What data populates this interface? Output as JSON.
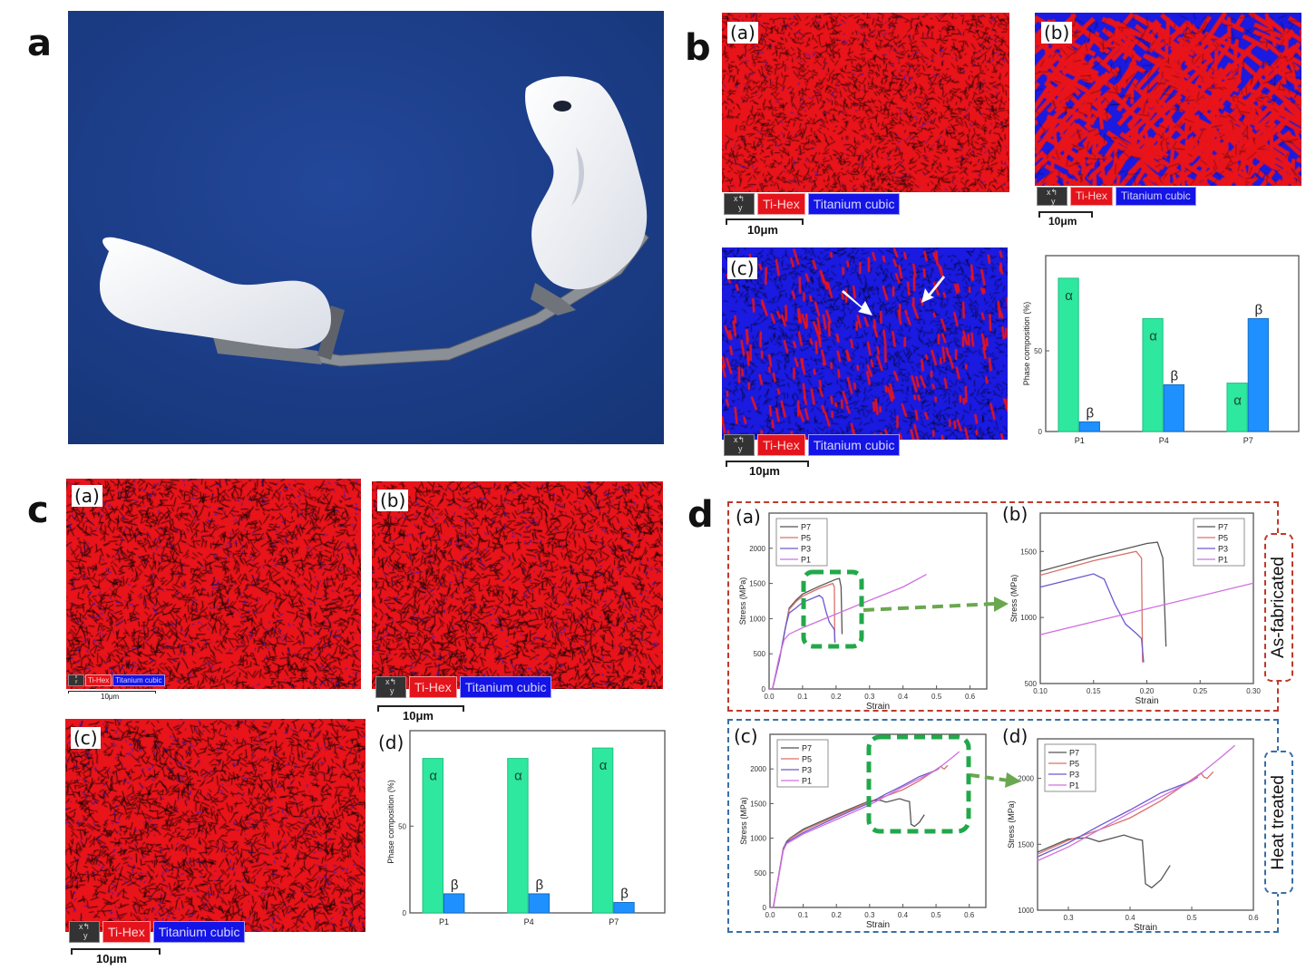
{
  "panels": {
    "a": "a",
    "b": "b",
    "c": "c",
    "d": "d"
  },
  "sub_labels": {
    "a": "(a)",
    "b": "(b)",
    "c": "(c)",
    "d": "(d)"
  },
  "ebsd_legend": {
    "xy_icon": "x-y axes icon",
    "ti_hex": "Ti-Hex",
    "ti_cubic": "Titanium cubic",
    "scale": "10μm"
  },
  "colors": {
    "ti_hex": "#e4141c",
    "ti_cubic": "#1414e6",
    "alpha": "#2ee8a0",
    "beta": "#1e90ff",
    "as_fabricated_border": "#c0392b",
    "heat_treated_border": "#3a6ea5",
    "zoom_box": "#22a84a"
  },
  "side_labels": {
    "as_fabricated": "As-fabricated",
    "heat_treated": "Heat treated"
  },
  "chart_data": [
    {
      "id": "b-phase",
      "type": "bar",
      "title": "",
      "xlabel": "",
      "ylabel": "Phase composition (%)",
      "categories": [
        "P1",
        "P4",
        "P7"
      ],
      "series": [
        {
          "name": "α",
          "values": [
            95,
            70,
            30
          ]
        },
        {
          "name": "β",
          "values": [
            6,
            29,
            70
          ]
        }
      ],
      "ylim": [
        0,
        109
      ],
      "yticks": [
        0,
        50
      ],
      "ytick_labels": [
        "0",
        "50"
      ],
      "grid": false
    },
    {
      "id": "c-phase",
      "type": "bar",
      "title": "",
      "xlabel": "",
      "ylabel": "Phase composition (%)",
      "categories": [
        "P1",
        "P4",
        "P7"
      ],
      "series": [
        {
          "name": "α",
          "values": [
            89,
            89,
            95
          ]
        },
        {
          "name": "β",
          "values": [
            11,
            11,
            6
          ]
        }
      ],
      "ylim": [
        0,
        105
      ],
      "yticks": [
        0,
        50
      ],
      "ytick_labels": [
        "0",
        "50"
      ],
      "grid": false
    },
    {
      "id": "d-a",
      "type": "line",
      "condition": "as_fabricated",
      "xlabel": "Strain",
      "ylabel": "Stress (MPa)",
      "xlim": [
        0,
        0.65
      ],
      "ylim": [
        0,
        2500
      ],
      "xticks": [
        0,
        0.1,
        0.2,
        0.3,
        0.4,
        0.5,
        0.6
      ],
      "xtick_labels": [
        "0.0",
        "0.1",
        "0.2",
        "0.3",
        "0.4",
        "0.5",
        "0.6"
      ],
      "yticks": [
        0,
        500,
        1000,
        1500,
        2000
      ],
      "ytick_labels": [
        "0",
        "500",
        "1000",
        "1500",
        "2000"
      ],
      "legend": "top-left"
    },
    {
      "id": "d-b",
      "type": "line",
      "condition": "as_fabricated",
      "xlabel": "Strain",
      "ylabel": "Stress (MPa)",
      "xlim": [
        0.1,
        0.3
      ],
      "ylim": [
        500,
        1790
      ],
      "xticks": [
        0.1,
        0.15,
        0.2,
        0.25,
        0.3
      ],
      "xtick_labels": [
        "0.10",
        "0.15",
        "0.20",
        "0.25",
        "0.30"
      ],
      "yticks": [
        500,
        1000,
        1500
      ],
      "ytick_labels": [
        "500",
        "1000",
        "1500"
      ],
      "legend": "top-right"
    },
    {
      "id": "d-c",
      "type": "line",
      "condition": "heat_treated",
      "xlabel": "Strain",
      "ylabel": "Stress (MPa)",
      "xlim": [
        0,
        0.65
      ],
      "ylim": [
        0,
        2500
      ],
      "xticks": [
        0,
        0.1,
        0.2,
        0.3,
        0.4,
        0.5,
        0.6
      ],
      "xtick_labels": [
        "0.0",
        "0.1",
        "0.2",
        "0.3",
        "0.4",
        "0.5",
        "0.6"
      ],
      "yticks": [
        0,
        500,
        1000,
        1500,
        2000
      ],
      "ytick_labels": [
        "0",
        "500",
        "1000",
        "1500",
        "2000"
      ],
      "legend": "top-left"
    },
    {
      "id": "d-d",
      "type": "line",
      "condition": "heat_treated",
      "xlabel": "Strain",
      "ylabel": "Stress (MPa)",
      "xlim": [
        0.25,
        0.6
      ],
      "ylim": [
        1000,
        2300
      ],
      "xticks": [
        0.3,
        0.4,
        0.5,
        0.6
      ],
      "xtick_labels": [
        "0.3",
        "0.4",
        "0.5",
        "0.6"
      ],
      "yticks": [
        1000,
        1500,
        2000
      ],
      "ytick_labels": [
        "1000",
        "1500",
        "2000"
      ],
      "legend": "top-left"
    }
  ],
  "stress_strain": {
    "as_fabricated": [
      {
        "name": "P7",
        "color": "#555555",
        "points": [
          [
            0,
            0
          ],
          [
            0.01,
            0
          ],
          [
            0.03,
            400
          ],
          [
            0.05,
            900
          ],
          [
            0.06,
            1150
          ],
          [
            0.08,
            1260
          ],
          [
            0.1,
            1350
          ],
          [
            0.15,
            1460
          ],
          [
            0.2,
            1560
          ],
          [
            0.21,
            1570
          ],
          [
            0.215,
            1450
          ],
          [
            0.218,
            780
          ]
        ]
      },
      {
        "name": "P5",
        "color": "#d9716b",
        "points": [
          [
            0,
            0
          ],
          [
            0.01,
            0
          ],
          [
            0.03,
            400
          ],
          [
            0.05,
            900
          ],
          [
            0.06,
            1130
          ],
          [
            0.08,
            1240
          ],
          [
            0.1,
            1320
          ],
          [
            0.15,
            1430
          ],
          [
            0.19,
            1500
          ],
          [
            0.195,
            1450
          ],
          [
            0.196,
            660
          ]
        ]
      },
      {
        "name": "P3",
        "color": "#6a5acd",
        "points": [
          [
            0,
            0
          ],
          [
            0.01,
            0
          ],
          [
            0.03,
            400
          ],
          [
            0.05,
            900
          ],
          [
            0.06,
            1080
          ],
          [
            0.08,
            1150
          ],
          [
            0.1,
            1230
          ],
          [
            0.15,
            1330
          ],
          [
            0.16,
            1290
          ],
          [
            0.17,
            1100
          ],
          [
            0.18,
            950
          ],
          [
            0.19,
            880
          ],
          [
            0.195,
            840
          ],
          [
            0.197,
            660
          ]
        ]
      },
      {
        "name": "P1",
        "color": "#d070e0",
        "points": [
          [
            0,
            0
          ],
          [
            0.01,
            0
          ],
          [
            0.03,
            450
          ],
          [
            0.045,
            700
          ],
          [
            0.06,
            780
          ],
          [
            0.1,
            870
          ],
          [
            0.2,
            1065
          ],
          [
            0.3,
            1260
          ],
          [
            0.4,
            1450
          ],
          [
            0.47,
            1630
          ]
        ]
      }
    ],
    "heat_treated": [
      {
        "name": "P7",
        "color": "#555555",
        "points": [
          [
            0,
            0
          ],
          [
            0.01,
            0
          ],
          [
            0.04,
            850
          ],
          [
            0.05,
            950
          ],
          [
            0.06,
            1000
          ],
          [
            0.1,
            1130
          ],
          [
            0.2,
            1340
          ],
          [
            0.3,
            1540
          ],
          [
            0.33,
            1550
          ],
          [
            0.35,
            1520
          ],
          [
            0.39,
            1570
          ],
          [
            0.41,
            1540
          ],
          [
            0.42,
            1530
          ],
          [
            0.425,
            1200
          ],
          [
            0.435,
            1170
          ],
          [
            0.45,
            1230
          ],
          [
            0.465,
            1340
          ]
        ]
      },
      {
        "name": "P5",
        "color": "#d9716b",
        "points": [
          [
            0,
            0
          ],
          [
            0.01,
            0
          ],
          [
            0.04,
            860
          ],
          [
            0.06,
            990
          ],
          [
            0.1,
            1110
          ],
          [
            0.2,
            1320
          ],
          [
            0.3,
            1530
          ],
          [
            0.35,
            1610
          ],
          [
            0.4,
            1700
          ],
          [
            0.45,
            1830
          ],
          [
            0.5,
            1990
          ],
          [
            0.515,
            2040
          ],
          [
            0.52,
            2010
          ],
          [
            0.525,
            2000
          ],
          [
            0.535,
            2050
          ]
        ]
      },
      {
        "name": "P3",
        "color": "#6a5acd",
        "points": [
          [
            0,
            0
          ],
          [
            0.01,
            0
          ],
          [
            0.04,
            840
          ],
          [
            0.05,
            940
          ],
          [
            0.1,
            1080
          ],
          [
            0.2,
            1300
          ],
          [
            0.3,
            1510
          ],
          [
            0.35,
            1640
          ],
          [
            0.4,
            1760
          ],
          [
            0.45,
            1890
          ],
          [
            0.5,
            1980
          ],
          [
            0.51,
            2010
          ]
        ]
      },
      {
        "name": "P1",
        "color": "#d070e0",
        "points": [
          [
            0,
            0
          ],
          [
            0.01,
            0
          ],
          [
            0.04,
            820
          ],
          [
            0.05,
            920
          ],
          [
            0.1,
            1060
          ],
          [
            0.2,
            1270
          ],
          [
            0.3,
            1480
          ],
          [
            0.4,
            1740
          ],
          [
            0.5,
            1980
          ],
          [
            0.55,
            2170
          ],
          [
            0.57,
            2250
          ]
        ]
      }
    ]
  }
}
